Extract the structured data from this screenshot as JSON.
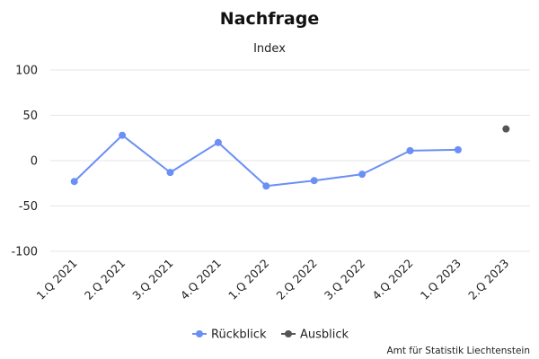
{
  "chart_data": {
    "type": "line",
    "title": "Nachfrage",
    "subtitle": "Index",
    "categories": [
      "1.Q 2021",
      "2.Q 2021",
      "3.Q 2021",
      "4.Q 2021",
      "1.Q 2022",
      "2.Q 2022",
      "3.Q 2022",
      "4.Q 2022",
      "1.Q 2023",
      "2.Q 2023"
    ],
    "ylim": [
      -100,
      100
    ],
    "yticks": [
      100,
      50,
      0,
      -50,
      -100
    ],
    "ytick_labels": [
      "100",
      "50",
      "0",
      "-50",
      "-100"
    ],
    "grid": true,
    "legend_position": "bottom",
    "series": [
      {
        "name": "Rückblick",
        "color": "#6a8ff5",
        "values": [
          -23,
          28,
          -13,
          20,
          -28,
          -22,
          -15,
          11,
          12,
          null
        ]
      },
      {
        "name": "Ausblick",
        "color": "#555555",
        "values": [
          null,
          null,
          null,
          null,
          null,
          null,
          null,
          null,
          null,
          35
        ]
      }
    ],
    "credit": "Amt für Statistik Liechtenstein"
  }
}
